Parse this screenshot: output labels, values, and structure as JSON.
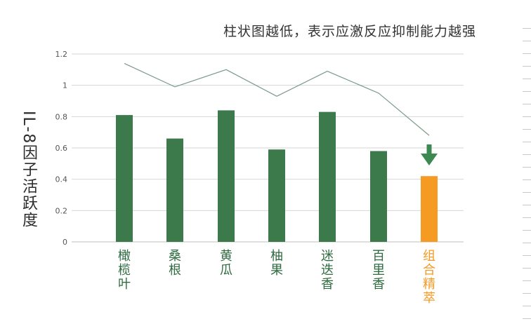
{
  "chart_data": {
    "type": "bar",
    "title": "柱状图越低，表示应激反应抑制能力越强",
    "ylabel": "IL-8因子活跃度",
    "xlabel": "",
    "ylim": [
      0,
      1.2
    ],
    "yticks": [
      "0",
      "0.2",
      "0.4",
      "0.6",
      "0.8",
      "1",
      "1.2"
    ],
    "categories": [
      "橄榄叶",
      "桑根",
      "黄瓜",
      "柚果",
      "迷迭香",
      "百里香",
      "组合精萃"
    ],
    "values": [
      0.81,
      0.66,
      0.84,
      0.59,
      0.83,
      0.58,
      0.42
    ],
    "line_values": [
      1.14,
      0.99,
      1.1,
      0.93,
      1.09,
      0.95,
      0.68
    ],
    "highlight_index": 6,
    "colors": {
      "bar": "#3c7a4c",
      "highlight": "#f59a23",
      "line": "#7a9a88",
      "arrow": "#3c8a52",
      "grid": "#d6d6d6"
    }
  }
}
